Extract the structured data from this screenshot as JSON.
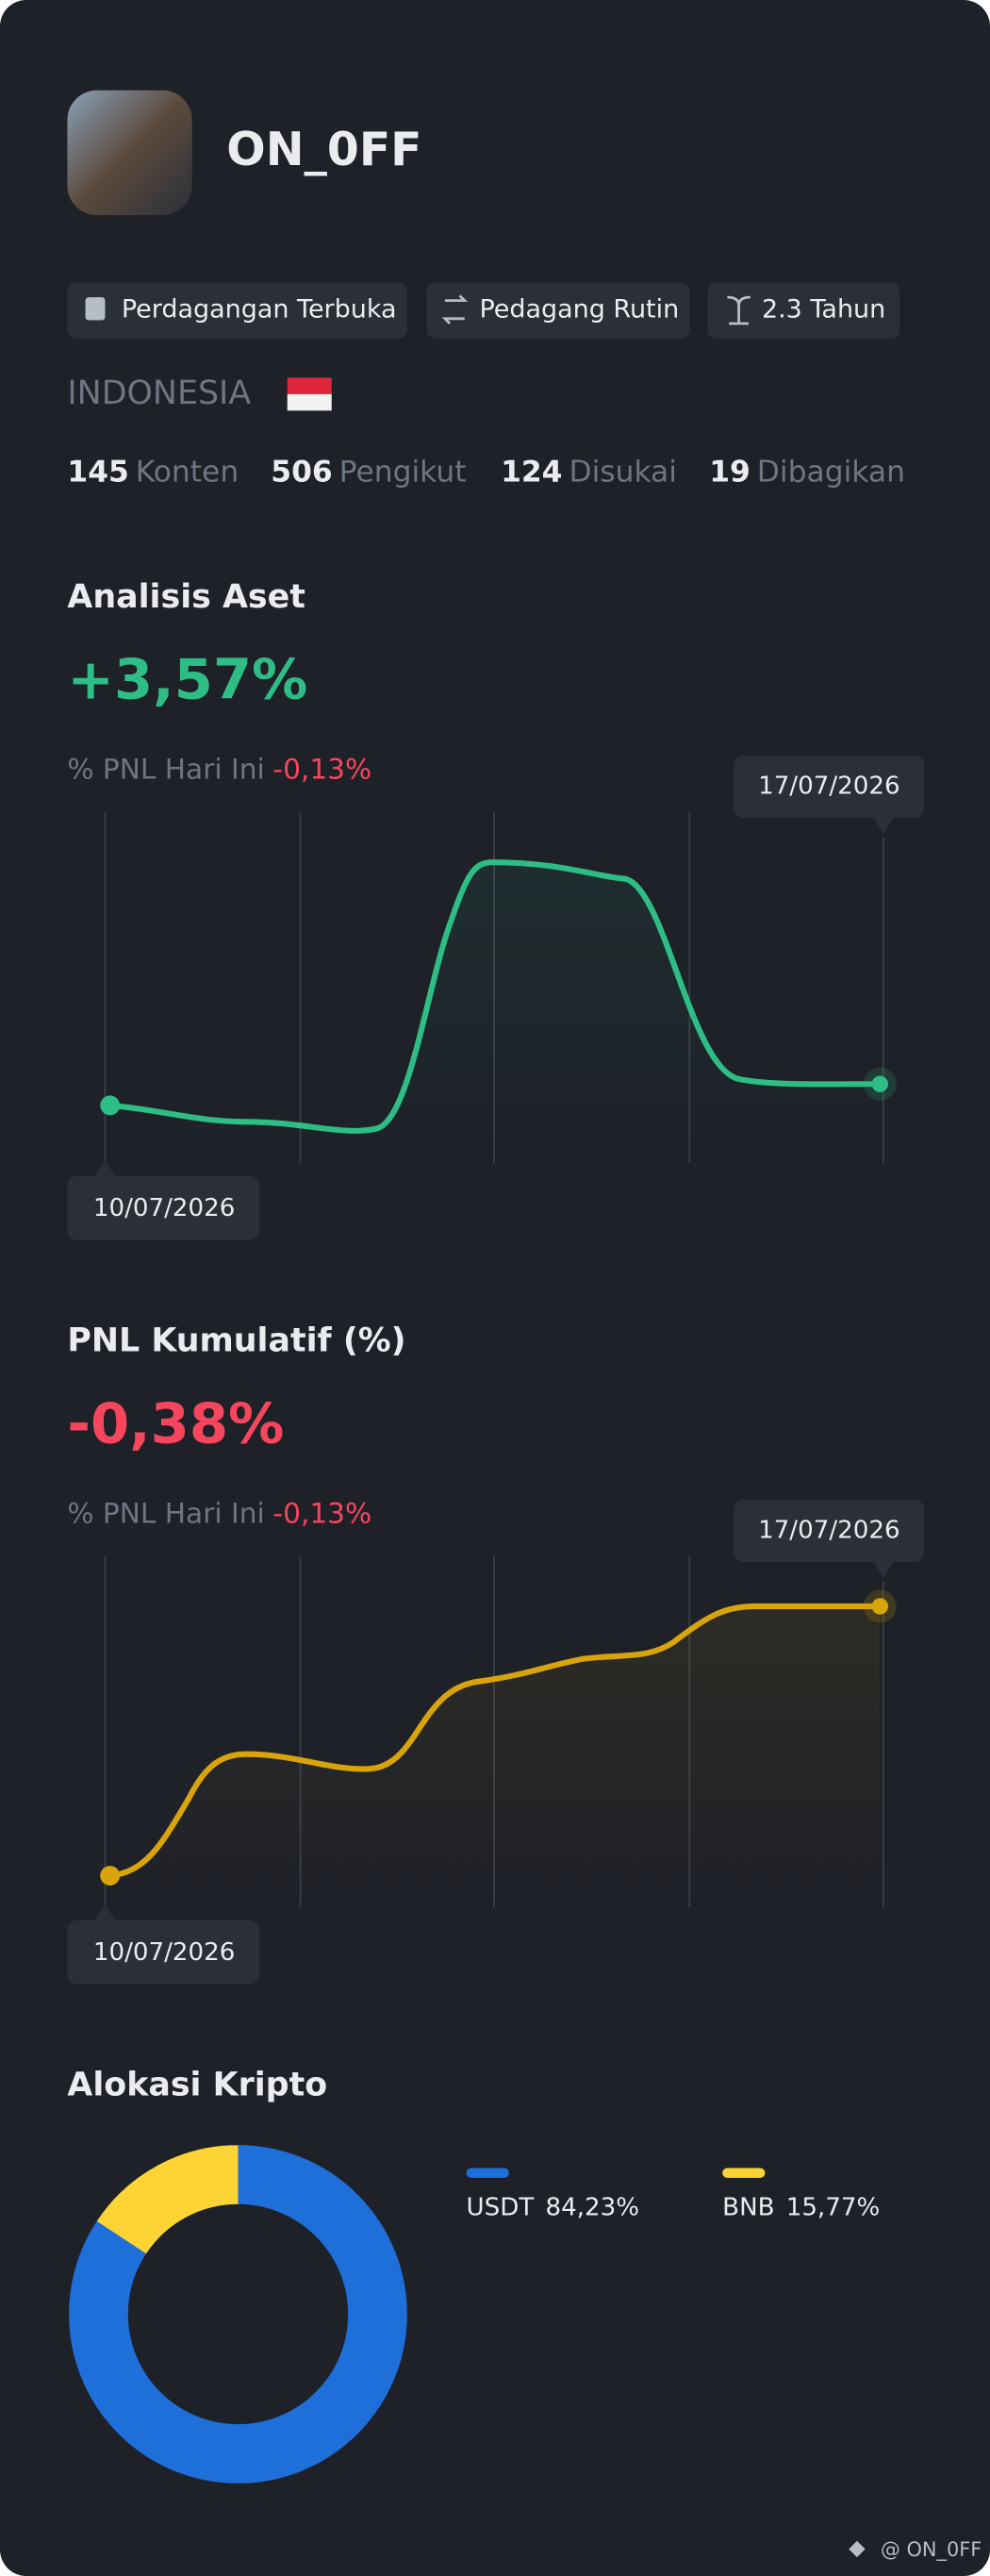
{
  "profile": {
    "name": "ON_0FF",
    "badges": [
      "Perdagangan Terbuka",
      "Pedagang Rutin",
      "2.3 Tahun"
    ],
    "country": "INDONESIA",
    "stats": [
      {
        "value": 145,
        "label": "Konten"
      },
      {
        "value": 506,
        "label": "Pengikut"
      },
      {
        "value": 124,
        "label": "Disukai"
      },
      {
        "value": 19,
        "label": "Dibagikan"
      }
    ]
  },
  "asset_analysis": {
    "title": "Analisis Aset",
    "value": "+3,57%",
    "pnl_label": "% PNL Hari Ini",
    "pnl_value": "-0,13%",
    "start_date": "10/07/2026",
    "end_date": "17/07/2026"
  },
  "cumulative_pnl": {
    "title": "PNL Kumulatif (%)",
    "value": "-0,38%",
    "pnl_label": "% PNL Hari Ini",
    "pnl_value": "-0,13%",
    "start_date": "10/07/2026",
    "end_date": "17/07/2026"
  },
  "allocation": {
    "title": "Alokasi Kripto",
    "chart_data": {
      "type": "pie",
      "categories": [
        "USDT",
        "BNB"
      ],
      "values": [
        84.23,
        15.77
      ],
      "value_labels": [
        "84,23%",
        "15,77%"
      ],
      "colors": [
        "#1f6fdb",
        "#fcd535"
      ]
    }
  },
  "footer": "@ ON_0FF"
}
